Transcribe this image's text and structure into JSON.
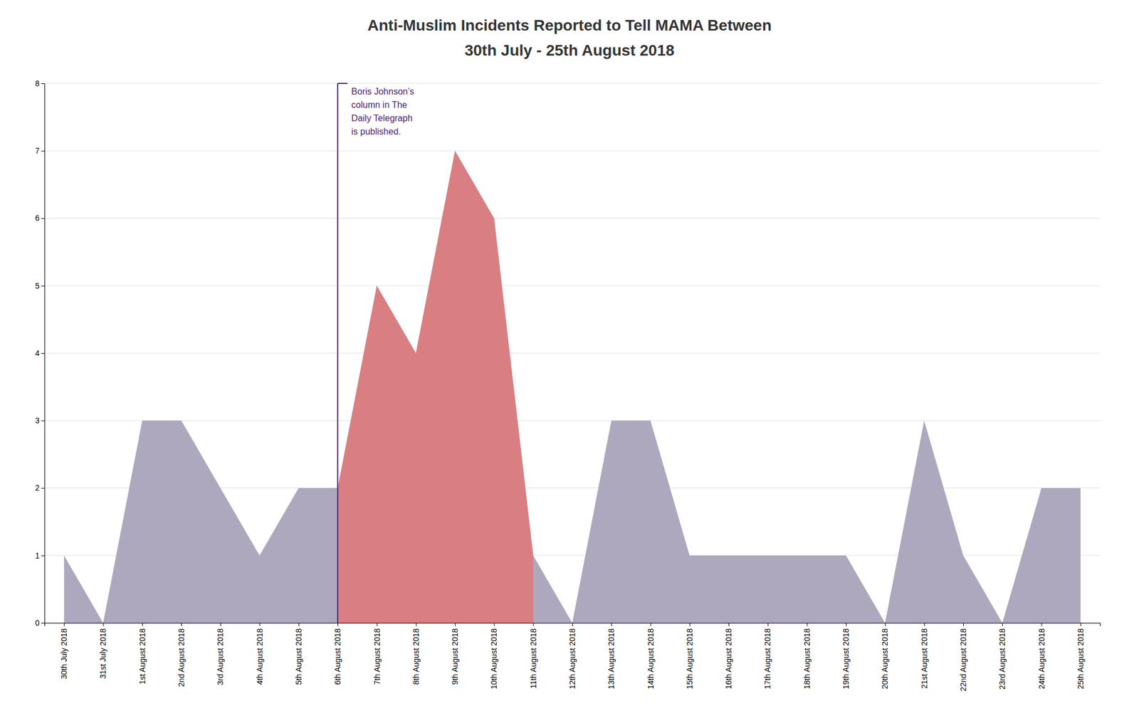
{
  "chart_data": {
    "type": "area",
    "title": "Anti-Muslim Incidents Reported to Tell MAMA Between",
    "subtitle": "30th July - 25th August 2018",
    "categories": [
      "30th July 2018",
      "31st July 2018",
      "1st August 2018",
      "2nd August 2018",
      "3rd August 2018",
      "4th August 2018",
      "5th August 2018",
      "6th August 2018",
      "7th August 2018",
      "8th August 2018",
      "9th August 2018",
      "10th August 2018",
      "11th August 2018",
      "12th August 2018",
      "13th August 2018",
      "14th August 2018",
      "15th August 2018",
      "16th August 2018",
      "17th August 2018",
      "18th August 2018",
      "19th August 2018",
      "20th August 2018",
      "21st August 2018",
      "22nd August 2018",
      "23rd August 2018",
      "24th August 2018",
      "25th August 2018"
    ],
    "series": [
      {
        "color": "#aea8be",
        "values": [
          1,
          0,
          3,
          3,
          2,
          1,
          2,
          2,
          5,
          4,
          7,
          6,
          1,
          0,
          3,
          3,
          1,
          1,
          1,
          1,
          1,
          0,
          3,
          1,
          0,
          2,
          2
        ]
      },
      {
        "color": "#e07878",
        "values": [
          null,
          null,
          null,
          null,
          null,
          null,
          null,
          2,
          5,
          4,
          7,
          6,
          1,
          null,
          null,
          null,
          null,
          null,
          null,
          null,
          null,
          null,
          null,
          null,
          null,
          null,
          null
        ]
      }
    ],
    "annotations": [
      {
        "text": "Boris Johnson’s\ncolumn in The\nDaily Telegraph\nis published.",
        "x": "6th August 2018",
        "y": 8,
        "color": "#4a2472"
      }
    ],
    "ylim": [
      0,
      8
    ],
    "yticks": [
      0,
      1,
      2,
      3,
      4,
      5,
      6,
      7,
      8
    ],
    "grid": true
  }
}
